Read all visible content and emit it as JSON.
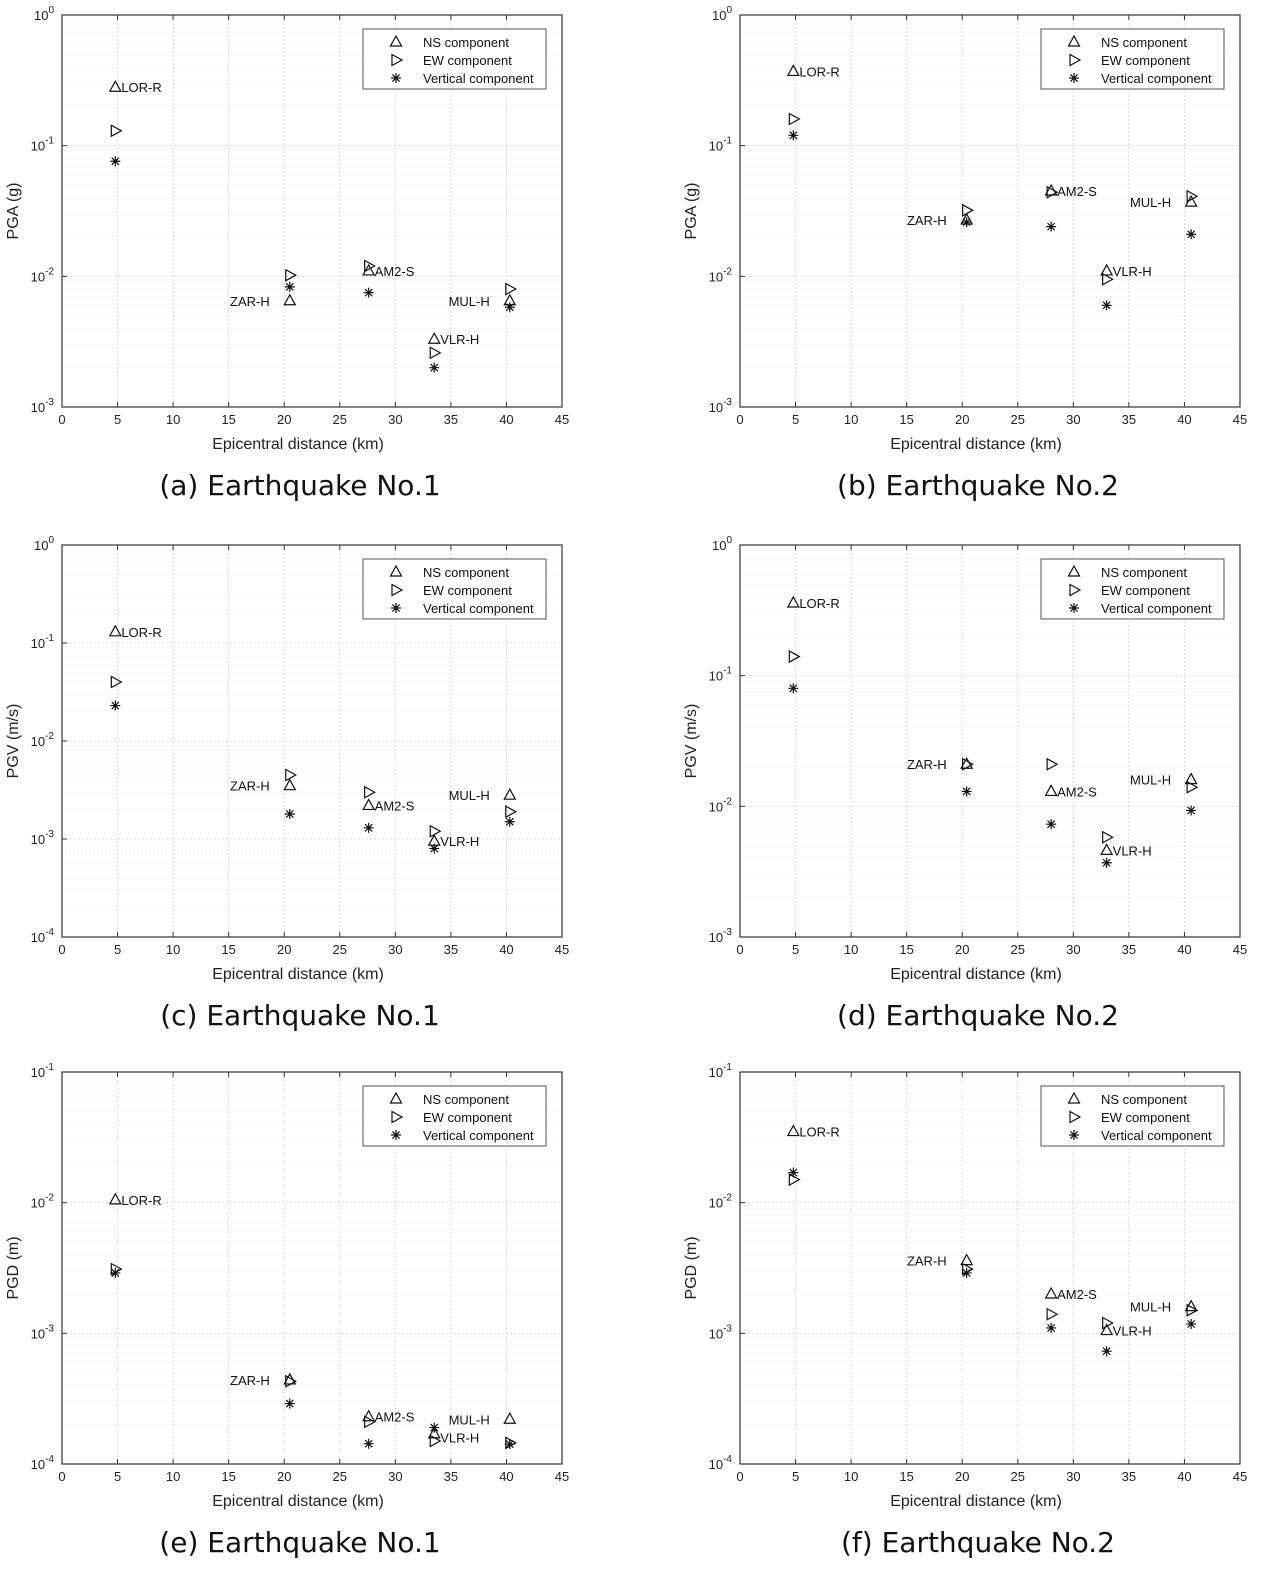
{
  "chart_data": [
    {
      "id": "a",
      "type": "scatter",
      "caption": "(a) Earthquake No.1",
      "xlabel": "Epicentral distance (km)",
      "ylabel": "PGA (g)",
      "xlim": [
        0,
        45
      ],
      "xticks": [
        0,
        5,
        10,
        15,
        20,
        25,
        30,
        35,
        40,
        45
      ],
      "yscale": "log",
      "ydec": [
        -3,
        0
      ],
      "legend": [
        "NS component",
        "EW component",
        "Vertical component"
      ],
      "series": [
        {
          "name": "NS component",
          "marker": "triangle-up",
          "points": [
            [
              4.8,
              0.28
            ],
            [
              20.5,
              0.0065
            ],
            [
              27.6,
              0.011
            ],
            [
              33.5,
              0.0033
            ],
            [
              40.3,
              0.0065
            ]
          ]
        },
        {
          "name": "EW component",
          "marker": "triangle-right",
          "points": [
            [
              4.8,
              0.13
            ],
            [
              20.5,
              0.0102
            ],
            [
              27.6,
              0.012
            ],
            [
              33.5,
              0.0026
            ],
            [
              40.3,
              0.008
            ]
          ]
        },
        {
          "name": "Vertical component",
          "marker": "star",
          "points": [
            [
              4.8,
              0.076
            ],
            [
              20.5,
              0.0083
            ],
            [
              27.6,
              0.0075
            ],
            [
              33.5,
              0.002
            ],
            [
              40.3,
              0.0058
            ]
          ]
        }
      ],
      "labels": [
        {
          "text": "LOR-R",
          "x": 4.8,
          "y": 0.28,
          "side": "right"
        },
        {
          "text": "ZAR-H",
          "x": 20.5,
          "y": 0.0065,
          "side": "left"
        },
        {
          "text": "AM2-S",
          "x": 27.6,
          "y": 0.011,
          "side": "right"
        },
        {
          "text": "VLR-H",
          "x": 33.5,
          "y": 0.0033,
          "side": "right"
        },
        {
          "text": "MUL-H",
          "x": 40.3,
          "y": 0.0065,
          "side": "left"
        }
      ]
    },
    {
      "id": "b",
      "type": "scatter",
      "caption": "(b) Earthquake No.2",
      "xlabel": "Epicentral distance (km)",
      "ylabel": "PGA (g)",
      "xlim": [
        0,
        45
      ],
      "xticks": [
        0,
        5,
        10,
        15,
        20,
        25,
        30,
        35,
        40,
        45
      ],
      "yscale": "log",
      "ydec": [
        -3,
        0
      ],
      "legend": [
        "NS component",
        "EW component",
        "Vertical component"
      ],
      "series": [
        {
          "name": "NS component",
          "marker": "triangle-up",
          "points": [
            [
              4.8,
              0.37
            ],
            [
              20.4,
              0.027
            ],
            [
              28.0,
              0.045
            ],
            [
              33.0,
              0.011
            ],
            [
              40.6,
              0.037
            ]
          ]
        },
        {
          "name": "EW component",
          "marker": "triangle-right",
          "points": [
            [
              4.8,
              0.16
            ],
            [
              20.4,
              0.032
            ],
            [
              28.0,
              0.044
            ],
            [
              33.0,
              0.0095
            ],
            [
              40.6,
              0.041
            ]
          ]
        },
        {
          "name": "Vertical component",
          "marker": "star",
          "points": [
            [
              4.8,
              0.12
            ],
            [
              20.4,
              0.026
            ],
            [
              28.0,
              0.024
            ],
            [
              33.0,
              0.006
            ],
            [
              40.6,
              0.021
            ]
          ]
        }
      ],
      "labels": [
        {
          "text": "LOR-R",
          "x": 4.8,
          "y": 0.37,
          "side": "right"
        },
        {
          "text": "ZAR-H",
          "x": 20.4,
          "y": 0.027,
          "side": "left"
        },
        {
          "text": "AM2-S",
          "x": 28.0,
          "y": 0.045,
          "side": "right"
        },
        {
          "text": "VLR-H",
          "x": 33.0,
          "y": 0.011,
          "side": "right"
        },
        {
          "text": "MUL-H",
          "x": 40.6,
          "y": 0.037,
          "side": "left"
        }
      ]
    },
    {
      "id": "c",
      "type": "scatter",
      "caption": "(c) Earthquake No.1",
      "xlabel": "Epicentral distance (km)",
      "ylabel": "PGV (m/s)",
      "xlim": [
        0,
        45
      ],
      "xticks": [
        0,
        5,
        10,
        15,
        20,
        25,
        30,
        35,
        40,
        45
      ],
      "yscale": "log",
      "ydec": [
        -4,
        0
      ],
      "legend": [
        "NS component",
        "EW component",
        "Vertical component"
      ],
      "series": [
        {
          "name": "NS component",
          "marker": "triangle-up",
          "points": [
            [
              4.8,
              0.13
            ],
            [
              20.5,
              0.0035
            ],
            [
              27.6,
              0.0022
            ],
            [
              33.5,
              0.00095
            ],
            [
              40.3,
              0.0028
            ]
          ]
        },
        {
          "name": "EW component",
          "marker": "triangle-right",
          "points": [
            [
              4.8,
              0.04
            ],
            [
              20.5,
              0.0045
            ],
            [
              27.6,
              0.003
            ],
            [
              33.5,
              0.0012
            ],
            [
              40.3,
              0.0019
            ]
          ]
        },
        {
          "name": "Vertical component",
          "marker": "star",
          "points": [
            [
              4.8,
              0.023
            ],
            [
              20.5,
              0.0018
            ],
            [
              27.6,
              0.0013
            ],
            [
              33.5,
              0.0008
            ],
            [
              40.3,
              0.0015
            ]
          ]
        }
      ],
      "labels": [
        {
          "text": "LOR-R",
          "x": 4.8,
          "y": 0.13,
          "side": "right"
        },
        {
          "text": "ZAR-H",
          "x": 20.5,
          "y": 0.0035,
          "side": "left"
        },
        {
          "text": "AM2-S",
          "x": 27.6,
          "y": 0.0022,
          "side": "right"
        },
        {
          "text": "VLR-H",
          "x": 33.5,
          "y": 0.00095,
          "side": "right"
        },
        {
          "text": "MUL-H",
          "x": 40.3,
          "y": 0.0028,
          "side": "left"
        }
      ]
    },
    {
      "id": "d",
      "type": "scatter",
      "caption": "(d) Earthquake No.2",
      "xlabel": "Epicentral distance (km)",
      "ylabel": "PGV (m/s)",
      "xlim": [
        0,
        45
      ],
      "xticks": [
        0,
        5,
        10,
        15,
        20,
        25,
        30,
        35,
        40,
        45
      ],
      "yscale": "log",
      "ydec": [
        -3,
        0
      ],
      "legend": [
        "NS component",
        "EW component",
        "Vertical component"
      ],
      "series": [
        {
          "name": "NS component",
          "marker": "triangle-up",
          "points": [
            [
              4.8,
              0.36
            ],
            [
              20.4,
              0.021
            ],
            [
              28.0,
              0.013
            ],
            [
              33.0,
              0.0046
            ],
            [
              40.6,
              0.016
            ]
          ]
        },
        {
          "name": "EW component",
          "marker": "triangle-right",
          "points": [
            [
              4.8,
              0.14
            ],
            [
              20.4,
              0.021
            ],
            [
              28.0,
              0.021
            ],
            [
              33.0,
              0.0058
            ],
            [
              40.6,
              0.014
            ]
          ]
        },
        {
          "name": "Vertical component",
          "marker": "star",
          "points": [
            [
              4.8,
              0.08
            ],
            [
              20.4,
              0.013
            ],
            [
              28.0,
              0.0073
            ],
            [
              33.0,
              0.0037
            ],
            [
              40.6,
              0.0093
            ]
          ]
        }
      ],
      "labels": [
        {
          "text": "LOR-R",
          "x": 4.8,
          "y": 0.36,
          "side": "right"
        },
        {
          "text": "ZAR-H",
          "x": 20.4,
          "y": 0.021,
          "side": "left"
        },
        {
          "text": "AM2-S",
          "x": 28.0,
          "y": 0.013,
          "side": "right"
        },
        {
          "text": "VLR-H",
          "x": 33.0,
          "y": 0.0046,
          "side": "right"
        },
        {
          "text": "MUL-H",
          "x": 40.6,
          "y": 0.016,
          "side": "left"
        }
      ]
    },
    {
      "id": "e",
      "type": "scatter",
      "caption": "(e) Earthquake No.1",
      "xlabel": "Epicentral distance (km)",
      "ylabel": "PGD (m)",
      "xlim": [
        0,
        45
      ],
      "xticks": [
        0,
        5,
        10,
        15,
        20,
        25,
        30,
        35,
        40,
        45
      ],
      "yscale": "log",
      "ydec": [
        -4,
        -1
      ],
      "legend": [
        "NS component",
        "EW component",
        "Vertical component"
      ],
      "series": [
        {
          "name": "NS component",
          "marker": "triangle-up",
          "points": [
            [
              4.8,
              0.0105
            ],
            [
              20.5,
              0.00044
            ],
            [
              27.6,
              0.00023
            ],
            [
              33.5,
              0.00017
            ],
            [
              40.3,
              0.00022
            ]
          ]
        },
        {
          "name": "EW component",
          "marker": "triangle-right",
          "points": [
            [
              4.8,
              0.0031
            ],
            [
              20.5,
              0.00043
            ],
            [
              27.6,
              0.00021
            ],
            [
              33.5,
              0.00015
            ],
            [
              40.3,
              0.000145
            ]
          ]
        },
        {
          "name": "Vertical component",
          "marker": "star",
          "points": [
            [
              4.8,
              0.0029
            ],
            [
              20.5,
              0.00029
            ],
            [
              27.6,
              0.000143
            ],
            [
              33.5,
              0.00019
            ],
            [
              40.3,
              0.000142
            ]
          ]
        }
      ],
      "labels": [
        {
          "text": "LOR-R",
          "x": 4.8,
          "y": 0.0105,
          "side": "right"
        },
        {
          "text": "ZAR-H",
          "x": 20.5,
          "y": 0.00044,
          "side": "left"
        },
        {
          "text": "AM2-S",
          "x": 27.6,
          "y": 0.00023,
          "side": "right"
        },
        {
          "text": "VLR-H",
          "x": 33.5,
          "y": 0.00016,
          "side": "right"
        },
        {
          "text": "MUL-H",
          "x": 40.3,
          "y": 0.00022,
          "side": "left"
        }
      ]
    },
    {
      "id": "f",
      "type": "scatter",
      "caption": "(f) Earthquake No.2",
      "xlabel": "Epicentral distance (km)",
      "ylabel": "PGD (m)",
      "xlim": [
        0,
        45
      ],
      "xticks": [
        0,
        5,
        10,
        15,
        20,
        25,
        30,
        35,
        40,
        45
      ],
      "yscale": "log",
      "ydec": [
        -4,
        -1
      ],
      "legend": [
        "NS component",
        "EW component",
        "Vertical component"
      ],
      "series": [
        {
          "name": "NS component",
          "marker": "triangle-up",
          "points": [
            [
              4.8,
              0.035
            ],
            [
              20.4,
              0.0036
            ],
            [
              28.0,
              0.002
            ],
            [
              33.0,
              0.00105
            ],
            [
              40.6,
              0.0016
            ]
          ]
        },
        {
          "name": "EW component",
          "marker": "triangle-right",
          "points": [
            [
              4.8,
              0.015
            ],
            [
              20.4,
              0.0031
            ],
            [
              28.0,
              0.0014
            ],
            [
              33.0,
              0.0012
            ],
            [
              40.6,
              0.0015
            ]
          ]
        },
        {
          "name": "Vertical component",
          "marker": "star",
          "points": [
            [
              4.8,
              0.017
            ],
            [
              20.4,
              0.0029
            ],
            [
              28.0,
              0.0011
            ],
            [
              33.0,
              0.00073
            ],
            [
              40.6,
              0.00118
            ]
          ]
        }
      ],
      "labels": [
        {
          "text": "LOR-R",
          "x": 4.8,
          "y": 0.035,
          "side": "right"
        },
        {
          "text": "ZAR-H",
          "x": 20.4,
          "y": 0.0036,
          "side": "left"
        },
        {
          "text": "AM2-S",
          "x": 28.0,
          "y": 0.002,
          "side": "right"
        },
        {
          "text": "VLR-H",
          "x": 33.0,
          "y": 0.00105,
          "side": "right"
        },
        {
          "text": "MUL-H",
          "x": 40.6,
          "y": 0.0016,
          "side": "left"
        }
      ]
    }
  ]
}
